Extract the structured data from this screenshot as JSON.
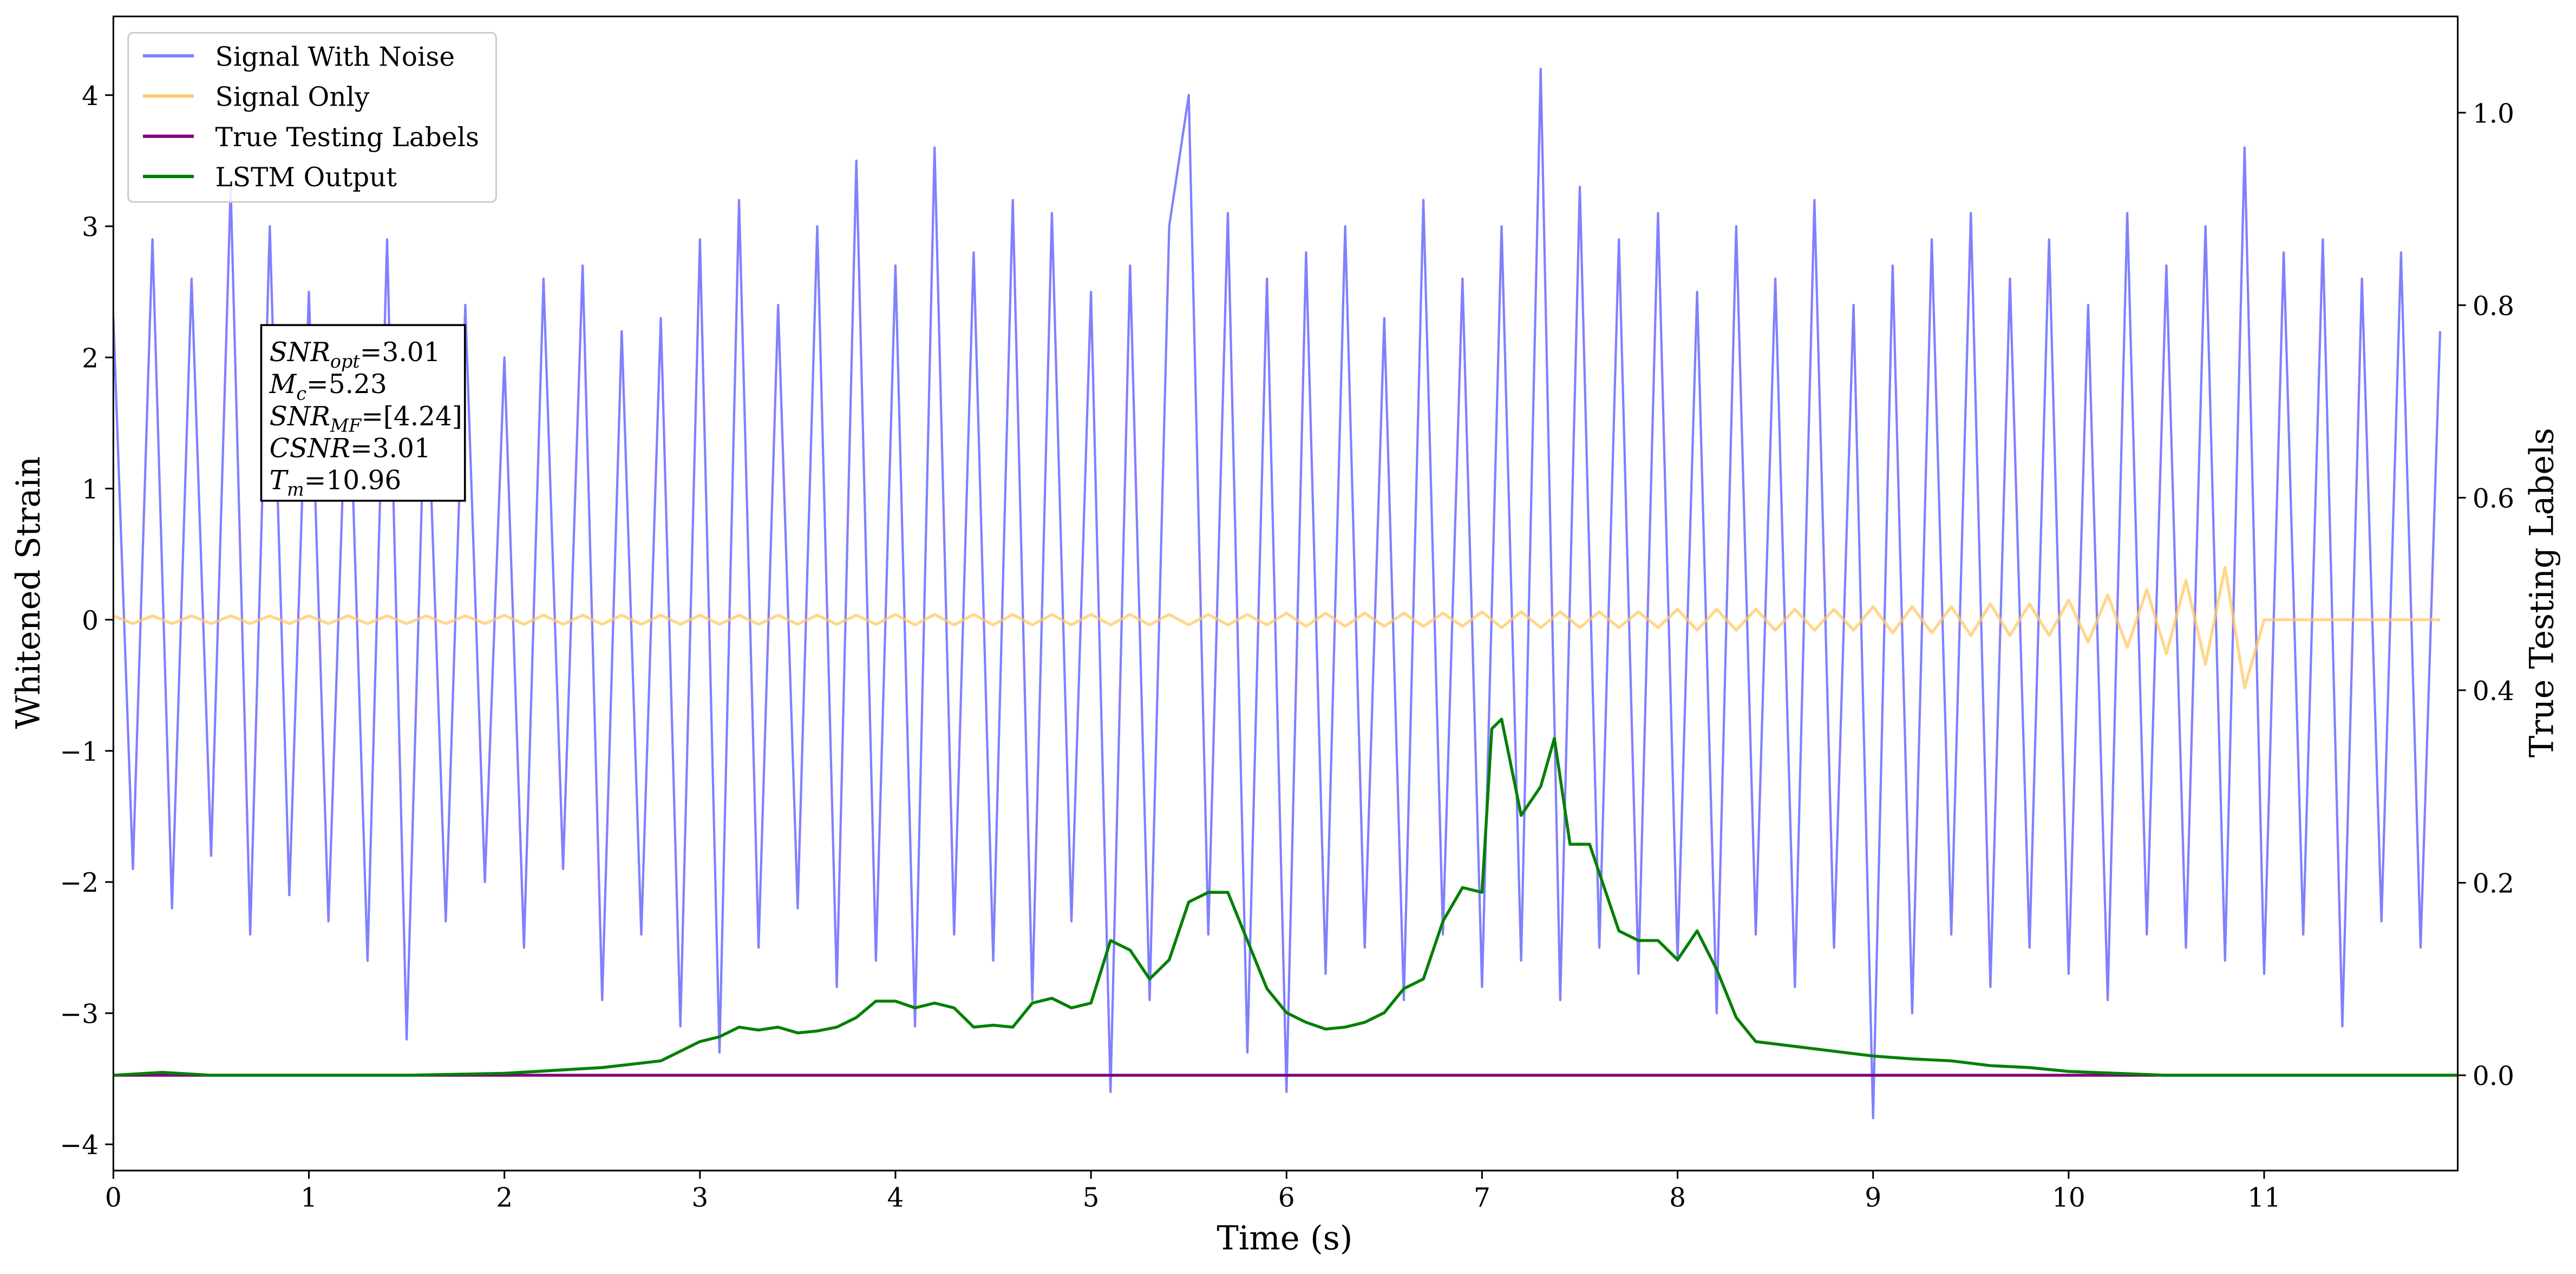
{
  "chart_data": {
    "type": "line",
    "xlabel": "Time (s)",
    "ylabel": "Whitened Strain",
    "y2label": "True Testing Labels",
    "legend": "upper left",
    "xlim": [
      0,
      11.99
    ],
    "ylim": [
      -4.2,
      4.6
    ],
    "y2lim": [
      -0.099,
      1.1
    ],
    "xticks": [
      0,
      1,
      2,
      3,
      4,
      5,
      6,
      7,
      8,
      9,
      10,
      11
    ],
    "yticks": [
      {
        "value": -4,
        "label": "−4"
      },
      {
        "value": -3,
        "label": "−3"
      },
      {
        "value": -2,
        "label": "−2"
      },
      {
        "value": -1,
        "label": "−1"
      },
      0,
      1,
      2,
      3,
      4
    ],
    "y2ticks": [
      {
        "value": 0,
        "label": "0.0"
      },
      {
        "value": 0.2,
        "label": "0.2"
      },
      {
        "value": 0.4,
        "label": "0.4"
      },
      {
        "value": 0.6,
        "label": "0.6"
      },
      {
        "value": 0.8,
        "label": "0.8"
      },
      {
        "value": 1,
        "label": "1.0"
      }
    ],
    "x": [
      0,
      0.1,
      0.2,
      0.3,
      0.4,
      0.5,
      0.6,
      0.7,
      0.8,
      0.9,
      1,
      1.1,
      1.2,
      1.3,
      1.4,
      1.5,
      1.6,
      1.7,
      1.8,
      1.9,
      2,
      2.1,
      2.2,
      2.3,
      2.4,
      2.5,
      2.6,
      2.7,
      2.8,
      2.9,
      3,
      3.1,
      3.2,
      3.3,
      3.4,
      3.5,
      3.6,
      3.7,
      3.8,
      3.9,
      4,
      4.1,
      4.2,
      4.3,
      4.4,
      4.5,
      4.6,
      4.7,
      4.8,
      4.9,
      5,
      5.1,
      5.2,
      5.3,
      5.4,
      5.5,
      5.6,
      5.7,
      5.8,
      5.9,
      6,
      6.1,
      6.2,
      6.3,
      6.4,
      6.5,
      6.6,
      6.7,
      6.8,
      6.9,
      7,
      7.1,
      7.2,
      7.3,
      7.4,
      7.5,
      7.6,
      7.7,
      7.8,
      7.9,
      8,
      8.1,
      8.2,
      8.3,
      8.4,
      8.5,
      8.6,
      8.7,
      8.8,
      8.9,
      9,
      9.1,
      9.2,
      9.3,
      9.4,
      9.5,
      9.6,
      9.7,
      9.8,
      9.9,
      10,
      10.1,
      10.2,
      10.3,
      10.4,
      10.5,
      10.6,
      10.7,
      10.8,
      10.9,
      11,
      11.1,
      11.2,
      11.3,
      11.4,
      11.5,
      11.6,
      11.7,
      11.8,
      11.9
    ],
    "series": [
      {
        "name": "Signal With Noise",
        "color": "#8080ff",
        "axis": "y",
        "values": [
          2.3,
          -1.9,
          2.9,
          -2.2,
          2.6,
          -1.8,
          3.3,
          -2.4,
          3.0,
          -2.1,
          2.5,
          -2.3,
          2.2,
          -2.6,
          2.9,
          -3.2,
          2.1,
          -2.3,
          2.4,
          -2.0,
          2.0,
          -2.5,
          2.6,
          -1.9,
          2.7,
          -2.9,
          2.2,
          -2.4,
          2.3,
          -3.1,
          2.9,
          -3.3,
          3.2,
          -2.5,
          2.4,
          -2.2,
          3.0,
          -2.8,
          3.5,
          -2.6,
          2.7,
          -3.1,
          3.6,
          -2.4,
          2.8,
          -2.6,
          3.2,
          -2.9,
          3.1,
          -2.3,
          2.5,
          -3.6,
          2.7,
          -2.9,
          3.0,
          4.0,
          -2.4,
          3.1,
          -3.3,
          2.6,
          -3.6,
          2.8,
          -2.7,
          3.0,
          -2.5,
          2.3,
          -2.9,
          3.2,
          -2.4,
          2.6,
          -2.8,
          3.0,
          -2.6,
          4.2,
          -2.9,
          3.3,
          -2.5,
          2.9,
          -2.7,
          3.1,
          -2.6,
          2.5,
          -3.0,
          3.0,
          -2.4,
          2.6,
          -2.8,
          3.2,
          -2.5,
          2.4,
          -3.8,
          2.7,
          -3.0,
          2.9,
          -2.4,
          3.1,
          -2.8,
          2.6,
          -2.5,
          2.9,
          -2.7,
          2.4,
          -2.9,
          3.1,
          -2.4,
          2.7,
          -2.5,
          3.0,
          -2.6,
          3.6,
          -2.7,
          2.8,
          -2.4,
          2.9,
          -3.1,
          2.6,
          -2.3,
          2.8,
          -2.5,
          2.2
        ]
      },
      {
        "name": "Signal Only",
        "color": "#ffc966",
        "axis": "y",
        "values": [
          0.03,
          -0.03,
          0.03,
          -0.03,
          0.03,
          -0.03,
          0.03,
          -0.03,
          0.03,
          -0.03,
          0.03,
          -0.03,
          0.03,
          -0.03,
          0.03,
          -0.03,
          0.03,
          -0.03,
          0.03,
          -0.03,
          0.035,
          -0.035,
          0.035,
          -0.035,
          0.035,
          -0.035,
          0.035,
          -0.035,
          0.035,
          -0.035,
          0.035,
          -0.035,
          0.035,
          -0.035,
          0.035,
          -0.035,
          0.035,
          -0.035,
          0.035,
          -0.035,
          0.04,
          -0.04,
          0.04,
          -0.04,
          0.04,
          -0.04,
          0.04,
          -0.04,
          0.04,
          -0.04,
          0.04,
          -0.04,
          0.04,
          -0.04,
          0.04,
          -0.04,
          0.04,
          -0.04,
          0.04,
          -0.04,
          0.05,
          -0.05,
          0.05,
          -0.05,
          0.05,
          -0.05,
          0.05,
          -0.05,
          0.05,
          -0.05,
          0.06,
          -0.06,
          0.06,
          -0.06,
          0.06,
          -0.06,
          0.06,
          -0.06,
          0.06,
          -0.06,
          0.08,
          -0.08,
          0.08,
          -0.08,
          0.08,
          -0.08,
          0.08,
          -0.08,
          0.08,
          -0.08,
          0.1,
          -0.1,
          0.1,
          -0.1,
          0.1,
          -0.12,
          0.12,
          -0.12,
          0.12,
          -0.12,
          0.15,
          -0.17,
          0.19,
          -0.21,
          0.23,
          -0.26,
          0.3,
          -0.34,
          0.4,
          -0.52,
          0,
          0,
          0,
          0,
          0,
          0,
          0,
          0,
          0,
          0
        ]
      },
      {
        "name": "True Testing Labels",
        "color": "#800080",
        "axis": "y2",
        "x": [
          0,
          11.99
        ],
        "values": [
          0,
          0
        ]
      },
      {
        "name": "LSTM Output",
        "color": "#008000",
        "axis": "y2",
        "x": [
          0,
          0.25,
          0.5,
          1,
          1.5,
          2,
          2.5,
          2.8,
          2.9,
          3.0,
          3.1,
          3.2,
          3.3,
          3.4,
          3.5,
          3.6,
          3.7,
          3.8,
          3.9,
          4.0,
          4.1,
          4.2,
          4.3,
          4.4,
          4.5,
          4.6,
          4.7,
          4.8,
          4.9,
          5.0,
          5.1,
          5.2,
          5.3,
          5.4,
          5.5,
          5.6,
          5.7,
          5.8,
          5.9,
          6.0,
          6.1,
          6.2,
          6.3,
          6.4,
          6.5,
          6.6,
          6.7,
          6.8,
          6.9,
          7.0,
          7.05,
          7.1,
          7.2,
          7.3,
          7.37,
          7.45,
          7.55,
          7.7,
          7.8,
          7.9,
          8.0,
          8.1,
          8.2,
          8.3,
          8.4,
          8.6,
          8.8,
          9.0,
          9.2,
          9.4,
          9.6,
          9.8,
          10,
          10.5,
          11,
          11.99
        ],
        "values": [
          0,
          0.003,
          0,
          0,
          0,
          0.002,
          0.008,
          0.015,
          0.025,
          0.035,
          0.04,
          0.05,
          0.047,
          0.05,
          0.044,
          0.046,
          0.05,
          0.06,
          0.077,
          0.077,
          0.07,
          0.075,
          0.07,
          0.05,
          0.052,
          0.05,
          0.075,
          0.08,
          0.07,
          0.075,
          0.14,
          0.13,
          0.1,
          0.12,
          0.18,
          0.19,
          0.19,
          0.14,
          0.09,
          0.065,
          0.055,
          0.048,
          0.05,
          0.055,
          0.065,
          0.09,
          0.1,
          0.16,
          0.195,
          0.19,
          0.36,
          0.37,
          0.27,
          0.3,
          0.35,
          0.24,
          0.24,
          0.15,
          0.14,
          0.14,
          0.12,
          0.15,
          0.11,
          0.06,
          0.035,
          0.03,
          0.025,
          0.02,
          0.017,
          0.015,
          0.01,
          0.008,
          0.004,
          0,
          0,
          0
        ]
      }
    ],
    "annotation": [
      {
        "symbol": "SNR",
        "subscript": "opt",
        "text": "=3.01"
      },
      {
        "symbol": "M",
        "subscript": "c",
        "text": "=5.23"
      },
      {
        "symbol": "SNR",
        "subscript": "MF",
        "text": "=[4.24]"
      },
      {
        "symbol": "CSNR",
        "text": "=3.01"
      },
      {
        "symbol": "T",
        "subscript": "m",
        "text": "=10.96"
      }
    ]
  }
}
